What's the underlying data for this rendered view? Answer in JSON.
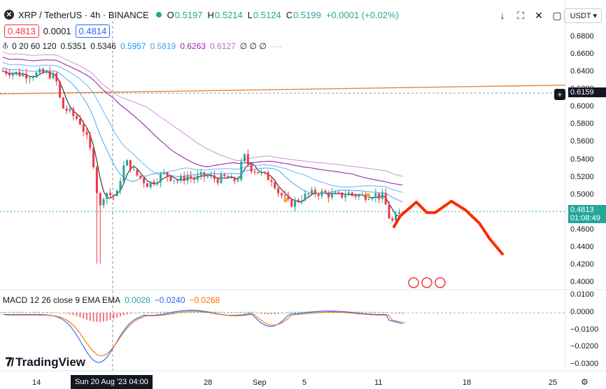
{
  "header": {
    "symbol": "XRP / TetherUS · 4h · BINANCE",
    "open_label": "O",
    "open": "0.5197",
    "high_label": "H",
    "high": "0.5214",
    "low_label": "L",
    "low": "0.5124",
    "close_label": "C",
    "close": "0.5199",
    "change": "+0.0001 (+0.02%)",
    "bid": "0.4813",
    "spread": "0.0001",
    "ask": "0.4814",
    "currency": "USDT",
    "toolbar_icons": [
      "arrow-down-icon",
      "fullscreen-icon",
      "close-icon",
      "screenshot-icon"
    ]
  },
  "ma_legend": {
    "params": "0 20 60 120",
    "values": [
      {
        "text": "0.5351",
        "color": "#131722"
      },
      {
        "text": "0.5346",
        "color": "#131722"
      },
      {
        "text": "0.5957",
        "color": "#2196f3"
      },
      {
        "text": "0.5819",
        "color": "#42a5f5"
      },
      {
        "text": "0.6263",
        "color": "#9c27b0"
      },
      {
        "text": "0.6127",
        "color": "#ba68c8"
      }
    ],
    "empty": "∅ ∅ ∅"
  },
  "macd_legend": {
    "params": "MACD 12 26 close 9 EMA EMA",
    "hist": "0.0028",
    "macd": "−0.0240",
    "signal": "−0.0268"
  },
  "brand": "TradingView",
  "price_axis": [
    "0.6800",
    "0.6600",
    "0.6400",
    "0.6200",
    "0.6000",
    "0.5800",
    "0.5600",
    "0.5400",
    "0.5200",
    "0.5000",
    "0.4800",
    "0.4600",
    "0.4400",
    "0.4200",
    "0.4000"
  ],
  "macd_axis": [
    "0.0100",
    "0.0000",
    "−0.0100",
    "−0.0200",
    "−0.0300"
  ],
  "time_axis": [
    "14",
    "28",
    "Sep",
    "5",
    "11",
    "18",
    "25"
  ],
  "crosshair_label": "Sun 20 Aug '23   04:00",
  "last_price_label": "0.4813",
  "countdown_label": "01:08:49",
  "line_price_label": "0.6159",
  "colors": {
    "up": "#26a69a",
    "down": "#f23645",
    "accent": "#2962ff",
    "forecast": "#ff2a00",
    "trendline": "#e8873a"
  },
  "chart_data": {
    "type": "candlestick",
    "symbol": "XRP / TetherUS",
    "interval": "4h",
    "ylim": [
      0.4,
      0.68
    ],
    "x_ticks": [
      "14",
      "28",
      "Sep",
      "5",
      "11",
      "18",
      "25"
    ],
    "close_path": [
      [
        0,
        0.641
      ],
      [
        0.02,
        0.64
      ],
      [
        0.04,
        0.638
      ],
      [
        0.06,
        0.637
      ],
      [
        0.08,
        0.637
      ],
      [
        0.1,
        0.639
      ],
      [
        0.12,
        0.637
      ],
      [
        0.135,
        0.633
      ],
      [
        0.15,
        0.6
      ],
      [
        0.165,
        0.596
      ],
      [
        0.18,
        0.59
      ],
      [
        0.195,
        0.585
      ],
      [
        0.21,
        0.57
      ],
      [
        0.225,
        0.548
      ],
      [
        0.235,
        0.53
      ],
      [
        0.245,
        0.48
      ],
      [
        0.26,
        0.505
      ],
      [
        0.275,
        0.5
      ],
      [
        0.29,
        0.498
      ],
      [
        0.305,
        0.53
      ],
      [
        0.32,
        0.538
      ],
      [
        0.335,
        0.525
      ],
      [
        0.35,
        0.52
      ],
      [
        0.37,
        0.512
      ],
      [
        0.39,
        0.518
      ],
      [
        0.41,
        0.524
      ],
      [
        0.43,
        0.52
      ],
      [
        0.45,
        0.516
      ],
      [
        0.47,
        0.522
      ],
      [
        0.49,
        0.518
      ],
      [
        0.51,
        0.522
      ],
      [
        0.53,
        0.52
      ],
      [
        0.55,
        0.518
      ],
      [
        0.57,
        0.52
      ],
      [
        0.585,
        0.515
      ],
      [
        0.6,
        0.52
      ],
      [
        0.615,
        0.545
      ],
      [
        0.63,
        0.532
      ],
      [
        0.645,
        0.528
      ],
      [
        0.66,
        0.524
      ],
      [
        0.675,
        0.52
      ],
      [
        0.69,
        0.518
      ],
      [
        0.7,
        0.505
      ],
      [
        0.715,
        0.498
      ],
      [
        0.73,
        0.49
      ],
      [
        0.745,
        0.492
      ],
      [
        0.76,
        0.497
      ],
      [
        0.78,
        0.5
      ],
      [
        0.8,
        0.503
      ],
      [
        0.82,
        0.502
      ],
      [
        0.84,
        0.5
      ],
      [
        0.86,
        0.499
      ],
      [
        0.88,
        0.502
      ],
      [
        0.9,
        0.5
      ],
      [
        0.92,
        0.499
      ],
      [
        0.94,
        0.501
      ],
      [
        0.955,
        0.5
      ],
      [
        0.97,
        0.497
      ],
      [
        0.98,
        0.485
      ],
      [
        0.99,
        0.468
      ],
      [
        1.0,
        0.472
      ],
      [
        1.01,
        0.478
      ],
      [
        1.02,
        0.481
      ]
    ],
    "notable_low_wick": 0.422,
    "ma_series": [
      {
        "name": "MA 20",
        "color": "#131722"
      },
      {
        "name": "MA 60",
        "color": "#42a5f5"
      },
      {
        "name": "MA 120",
        "color": "#9c27b0"
      }
    ],
    "horizontal_line": 0.6159,
    "trend_line": [
      0.615,
      0.625
    ],
    "last_price": 0.4813,
    "forecast_path": [
      0.464,
      0.476,
      0.492,
      0.48,
      0.48,
      0.493,
      0.483,
      0.468,
      0.45,
      0.433
    ],
    "macd": {
      "ylim": [
        -0.033,
        0.011
      ],
      "hist": 0.0028,
      "macd": -0.024,
      "signal": -0.0268
    },
    "grid": false
  }
}
